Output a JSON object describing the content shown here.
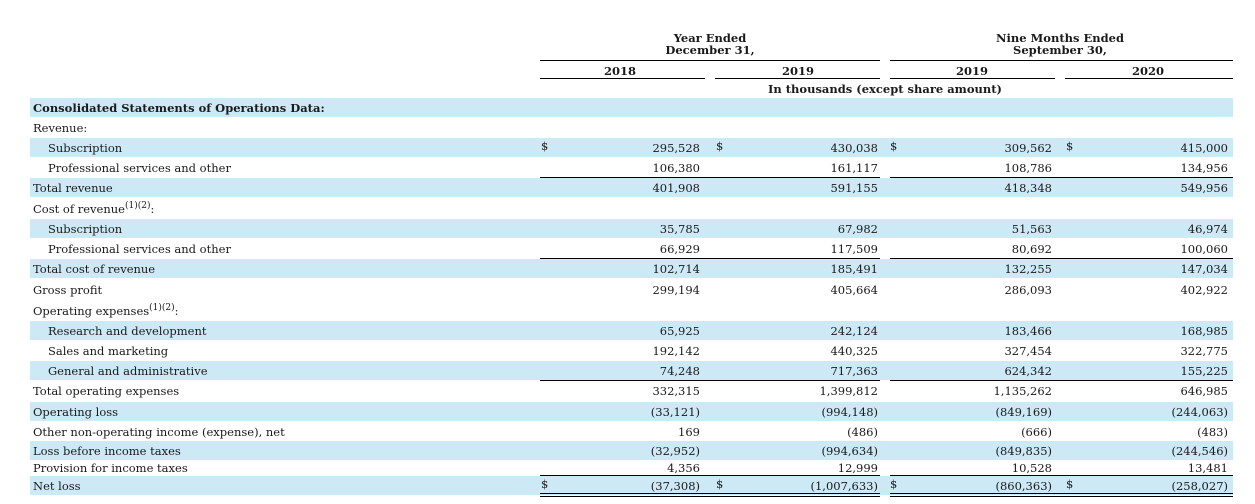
{
  "header": {
    "year_ended": [
      "Year Ended",
      "December 31,"
    ],
    "nine_months": [
      "Nine Months Ended",
      "September 30,"
    ],
    "columns": [
      "2018",
      "2019",
      "2019",
      "2020"
    ],
    "unit_note": "In thousands (except share amount)"
  },
  "currency_symbol": "$",
  "rows": [
    {
      "label": "Consolidated Statements of Operations Data:",
      "bold": true,
      "values": []
    },
    {
      "label": "Revenue:",
      "values": []
    },
    {
      "label": "Subscription",
      "indent": 1,
      "dollar": true,
      "values": [
        "295,528",
        "430,038",
        "309,562",
        "415,000"
      ]
    },
    {
      "label": "Professional services and other",
      "indent": 1,
      "values": [
        "106,380",
        "161,117",
        "108,786",
        "134,956"
      ]
    },
    {
      "label": "Total revenue",
      "values": [
        "401,908",
        "591,155",
        "418,348",
        "549,956"
      ]
    },
    {
      "label": "Cost of revenue",
      "note": "(1)(2)",
      "suffix": ":",
      "values": []
    },
    {
      "label": "Subscription",
      "indent": 1,
      "values": [
        "35,785",
        "67,982",
        "51,563",
        "46,974"
      ]
    },
    {
      "label": "Professional services and other",
      "indent": 1,
      "values": [
        "66,929",
        "117,509",
        "80,692",
        "100,060"
      ]
    },
    {
      "label": "Total cost of revenue",
      "values": [
        "102,714",
        "185,491",
        "132,255",
        "147,034"
      ]
    },
    {
      "label": "Gross profit",
      "values": [
        "299,194",
        "405,664",
        "286,093",
        "402,922"
      ]
    },
    {
      "label": "Operating expenses",
      "note": "(1)(2)",
      "suffix": ":",
      "values": []
    },
    {
      "label": "Research and development",
      "indent": 1,
      "values": [
        "65,925",
        "242,124",
        "183,466",
        "168,985"
      ]
    },
    {
      "label": "Sales and marketing",
      "indent": 1,
      "values": [
        "192,142",
        "440,325",
        "327,454",
        "322,775"
      ]
    },
    {
      "label": "General and administrative",
      "indent": 1,
      "values": [
        "74,248",
        "717,363",
        "624,342",
        "155,225"
      ]
    },
    {
      "label": "Total operating expenses",
      "values": [
        "332,315",
        "1,399,812",
        "1,135,262",
        "646,985"
      ]
    },
    {
      "label": "Operating loss",
      "values": [
        "(33,121)",
        "(994,148)",
        "(849,169)",
        "(244,063)"
      ]
    },
    {
      "label": "Other non-operating income (expense), net",
      "values": [
        "169",
        "(486)",
        "(666)",
        "(483)"
      ]
    },
    {
      "label": "Loss before income taxes",
      "values": [
        "(32,952)",
        "(994,634)",
        "(849,835)",
        "(244,546)"
      ]
    },
    {
      "label": "Provision for income taxes",
      "values": [
        "4,356",
        "12,999",
        "10,528",
        "13,481"
      ]
    },
    {
      "label": "Net loss",
      "dollar": true,
      "values": [
        "(37,308)",
        "(1,007,633)",
        "(860,363)",
        "(258,027)"
      ]
    }
  ]
}
